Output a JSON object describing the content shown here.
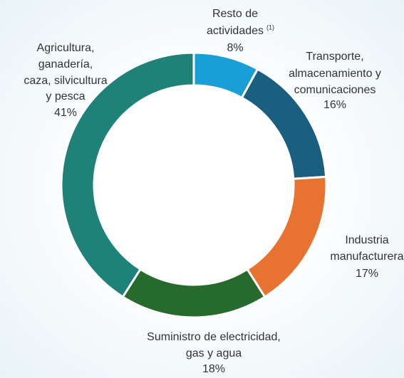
{
  "chart_data": {
    "type": "donut",
    "categories": [
      [
        "Resto de",
        "actividades"
      ],
      [
        "Transporte,",
        "almacenamiento y",
        "comunicaciones"
      ],
      [
        "Industria",
        "manufacturera"
      ],
      [
        "Suministro de electricidad,",
        "gas y agua"
      ],
      [
        "Agricultura,",
        "ganadería,",
        "caza, silvicultura",
        "y pesca"
      ]
    ],
    "footnote": "(1)",
    "values": [
      8,
      16,
      17,
      18,
      41
    ],
    "value_labels": [
      "8%",
      "16%",
      "17%",
      "18%",
      "41%"
    ],
    "colors": [
      "#1a9ed6",
      "#1a5e80",
      "#e8722f",
      "#276b2c",
      "#1f8278"
    ]
  }
}
